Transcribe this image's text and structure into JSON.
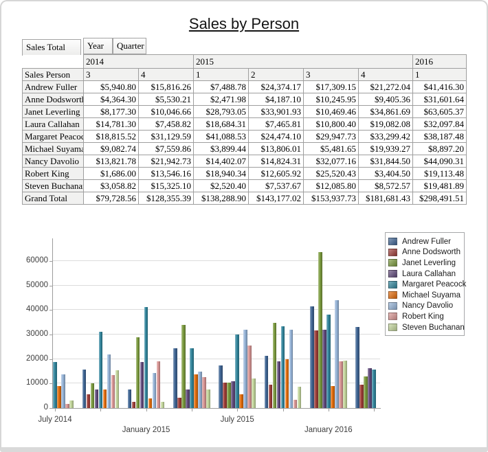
{
  "title": "Sales by Person",
  "pivot": {
    "measure_label": "Sales Total",
    "field_buttons": {
      "year": "Year",
      "quarter": "Quarter"
    },
    "row_header": "Sales Person",
    "year_columns": [
      {
        "label": "2014",
        "span": 2
      },
      {
        "label": "2015",
        "span": 4
      },
      {
        "label": "2016",
        "span": 1
      }
    ],
    "quarter_columns": [
      "3",
      "4",
      "1",
      "2",
      "3",
      "4",
      "1"
    ],
    "rows": [
      {
        "name": "Andrew Fuller",
        "values": [
          "$5,940.80",
          "$15,816.26",
          "$7,488.78",
          "$24,374.17",
          "$17,309.15",
          "$21,272.04",
          "$41,416.30"
        ]
      },
      {
        "name": "Anne Dodsworth",
        "values": [
          "$4,364.30",
          "$5,530.21",
          "$2,471.98",
          "$4,187.10",
          "$10,245.95",
          "$9,405.36",
          "$31,601.64"
        ]
      },
      {
        "name": "Janet Leverling",
        "values": [
          "$8,177.30",
          "$10,046.66",
          "$28,793.05",
          "$33,901.93",
          "$10,469.46",
          "$34,861.69",
          "$63,605.37"
        ]
      },
      {
        "name": "Laura Callahan",
        "values": [
          "$14,781.30",
          "$7,458.82",
          "$18,684.31",
          "$7,465.81",
          "$10,800.40",
          "$19,082.08",
          "$32,097.84"
        ]
      },
      {
        "name": "Margaret Peacock",
        "values": [
          "$18,815.52",
          "$31,129.59",
          "$41,088.53",
          "$24,474.10",
          "$29,947.73",
          "$33,299.42",
          "$38,187.48"
        ]
      },
      {
        "name": "Michael Suyama",
        "values": [
          "$9,082.74",
          "$7,559.86",
          "$3,899.44",
          "$13,806.01",
          "$5,481.65",
          "$19,939.27",
          "$8,897.20"
        ]
      },
      {
        "name": "Nancy Davolio",
        "values": [
          "$13,821.78",
          "$21,942.73",
          "$14,402.07",
          "$14,824.31",
          "$32,077.16",
          "$31,844.50",
          "$44,090.31"
        ]
      },
      {
        "name": "Robert King",
        "values": [
          "$1,686.00",
          "$13,546.16",
          "$18,940.34",
          "$12,605.92",
          "$25,520.43",
          "$3,404.50",
          "$19,113.48"
        ]
      },
      {
        "name": "Steven Buchanan",
        "values": [
          "$3,058.82",
          "$15,325.10",
          "$2,520.40",
          "$7,537.67",
          "$12,085.80",
          "$8,572.57",
          "$19,481.89"
        ]
      },
      {
        "name": "Grand Total",
        "values": [
          "$79,728.56",
          "$128,355.39",
          "$138,288.90",
          "$143,177.02",
          "$153,937.73",
          "$181,681.43",
          "$298,491.51"
        ]
      }
    ]
  },
  "chart_data": {
    "type": "bar",
    "title": "",
    "xlabel": "",
    "ylabel": "",
    "grid": true,
    "legend_position": "right",
    "x_tick_labels": [
      "July 2014",
      "January 2015",
      "July 2015",
      "January 2016"
    ],
    "y_ticks": [
      0,
      10000,
      20000,
      30000,
      40000,
      50000,
      60000
    ],
    "ylim": [
      0,
      69000
    ],
    "categories": [
      "2014 Q3",
      "2014 Q4",
      "2015 Q1",
      "2015 Q2",
      "2015 Q3",
      "2015 Q4",
      "2016 Q1",
      "2016 Q2 (clipped)"
    ],
    "series": [
      {
        "name": "Andrew Fuller",
        "color": "#3E6493",
        "values": [
          5940.8,
          15816.26,
          7488.78,
          24374.17,
          17309.15,
          21272.04,
          41416.3,
          33000
        ]
      },
      {
        "name": "Anne Dodsworth",
        "color": "#9E3D38",
        "values": [
          4364.3,
          5530.21,
          2471.98,
          4187.1,
          10245.95,
          9405.36,
          31601.64,
          9600
        ]
      },
      {
        "name": "Janet Leverling",
        "color": "#7A9A3D",
        "values": [
          8177.3,
          10046.66,
          28793.05,
          33901.93,
          10469.46,
          34861.69,
          63605.37,
          13000
        ]
      },
      {
        "name": "Laura Callahan",
        "color": "#604A7B",
        "values": [
          14781.3,
          7458.82,
          18684.31,
          7465.81,
          10800.4,
          19082.08,
          32097.84,
          16400
        ]
      },
      {
        "name": "Margaret Peacock",
        "color": "#31859C",
        "values": [
          18815.52,
          31129.59,
          41088.53,
          24474.1,
          29947.73,
          33299.42,
          38187.48,
          15800
        ]
      },
      {
        "name": "Michael Suyama",
        "color": "#E36C0A",
        "values": [
          9082.74,
          7559.86,
          3899.44,
          13806.01,
          5481.65,
          19939.27,
          8897.2,
          null
        ]
      },
      {
        "name": "Nancy Davolio",
        "color": "#95B3D7",
        "values": [
          13821.78,
          21942.73,
          14402.07,
          14824.31,
          32077.16,
          31844.5,
          44090.31,
          null
        ]
      },
      {
        "name": "Robert King",
        "color": "#D99694",
        "values": [
          1686.0,
          13546.16,
          18940.34,
          12605.92,
          25520.43,
          3404.5,
          19113.48,
          null
        ]
      },
      {
        "name": "Steven Buchanan",
        "color": "#C3D69B",
        "values": [
          3058.82,
          15325.1,
          2520.4,
          7537.67,
          12085.8,
          8572.57,
          19481.89,
          null
        ]
      }
    ]
  }
}
